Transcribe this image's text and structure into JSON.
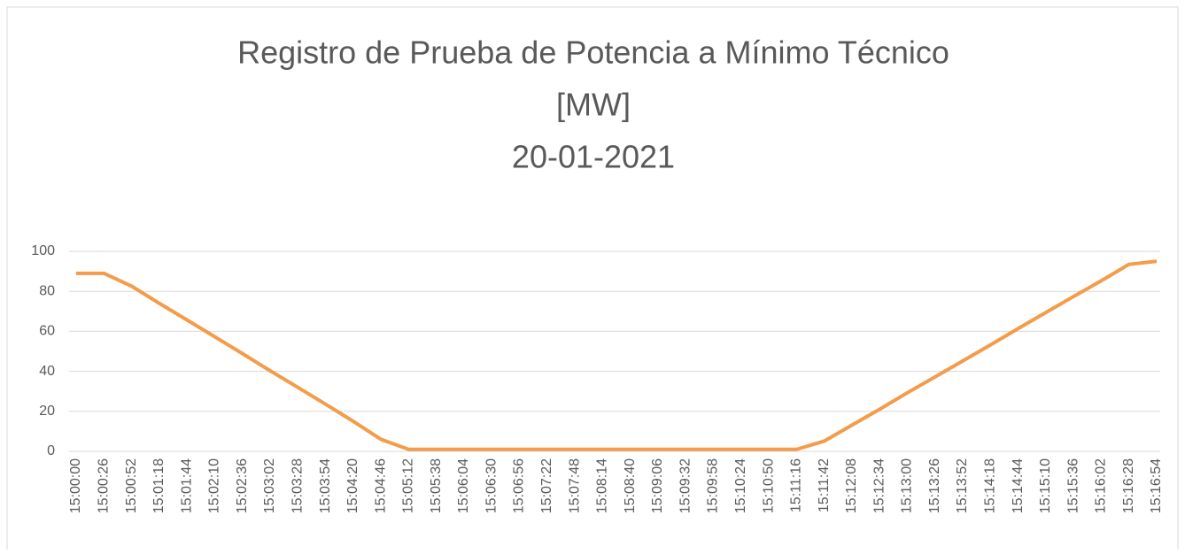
{
  "chart_data": {
    "type": "line",
    "title": [
      "Registro de Prueba de Potencia a Mínimo Técnico",
      "[MW]",
      "20-01-2021"
    ],
    "categories": [
      "15:00:00",
      "15:00:26",
      "15:00:52",
      "15:01:18",
      "15:01:44",
      "15:02:10",
      "15:02:36",
      "15:03:02",
      "15:03:28",
      "15:03:54",
      "15:04:20",
      "15:04:46",
      "15:05:12",
      "15:05:38",
      "15:06:04",
      "15:06:30",
      "15:06:56",
      "15:07:22",
      "15:07:48",
      "15:08:14",
      "15:08:40",
      "15:09:06",
      "15:09:32",
      "15:09:58",
      "15:10:24",
      "15:10:50",
      "15:11:16",
      "15:11:42",
      "15:12:08",
      "15:12:34",
      "15:13:00",
      "15:13:26",
      "15:13:52",
      "15:14:18",
      "15:14:44",
      "15:15:10",
      "15:15:36",
      "15:16:02",
      "15:16:28",
      "15:16:54"
    ],
    "series": [
      {
        "color": "#f39c4a",
        "values": [
          89,
          89,
          82.6,
          74,
          65.7,
          57.3,
          48.9,
          40.3,
          32,
          23.6,
          15,
          6,
          1,
          1,
          1,
          1,
          1,
          1,
          1,
          1,
          1,
          1,
          1,
          1,
          1,
          1,
          1,
          5.1,
          13.1,
          21,
          29.3,
          37.2,
          45.2,
          53.2,
          61.4,
          69.4,
          77.4,
          85.3,
          93.5,
          95
        ]
      }
    ],
    "ylim": [
      0,
      100
    ],
    "yticks": [
      0,
      20,
      40,
      60,
      80,
      100
    ],
    "grid": true
  }
}
